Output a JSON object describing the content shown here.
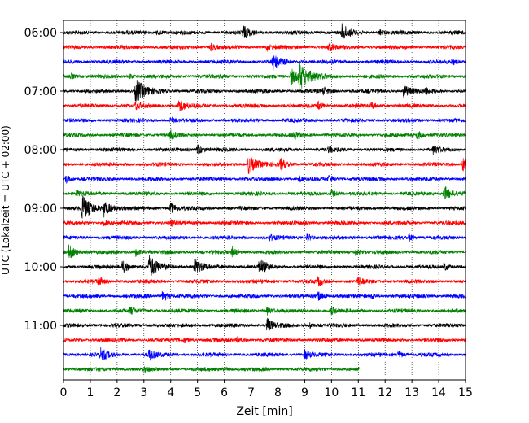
{
  "chart_data": {
    "type": "line",
    "title": "",
    "xlabel": "Zeit  [min]",
    "ylabel": "UTC (Lokalzeit = UTC + 02:00)",
    "xlim": [
      0,
      15
    ],
    "x_ticks": [
      "0",
      "1",
      "2",
      "3",
      "4",
      "5",
      "6",
      "7",
      "8",
      "9",
      "10",
      "11",
      "12",
      "13",
      "14",
      "15"
    ],
    "y_ticks": [
      {
        "time": "06:00",
        "row": 0
      },
      {
        "time": "07:00",
        "row": 4
      },
      {
        "time": "08:00",
        "row": 8
      },
      {
        "time": "09:00",
        "row": 12
      },
      {
        "time": "10:00",
        "row": 16
      },
      {
        "time": "11:00",
        "row": 20
      }
    ],
    "grid": "vertical dotted",
    "row_minutes": 15,
    "trace_colors": [
      "#000000",
      "#ff0000",
      "#0000ff",
      "#008000"
    ],
    "traces": [
      {
        "start": "06:00",
        "color": "#000000",
        "end_min": 15,
        "events": [
          [
            6.7,
            0.5
          ],
          [
            10.4,
            0.6
          ],
          [
            3.5,
            0.2
          ],
          [
            11.8,
            0.2
          ]
        ]
      },
      {
        "start": "06:15",
        "color": "#ff0000",
        "end_min": 15,
        "events": [
          [
            5.5,
            0.25
          ],
          [
            7.6,
            0.25
          ],
          [
            9.9,
            0.3
          ]
        ]
      },
      {
        "start": "06:30",
        "color": "#0000ff",
        "end_min": 15,
        "events": [
          [
            7.8,
            0.6
          ],
          [
            14.5,
            0.2
          ]
        ]
      },
      {
        "start": "06:45",
        "color": "#008000",
        "end_min": 15,
        "events": [
          [
            0.3,
            0.2
          ],
          [
            8.8,
            1.0
          ],
          [
            8.5,
            0.6
          ],
          [
            2.5,
            0.2
          ]
        ]
      },
      {
        "start": "07:00",
        "color": "#000000",
        "end_min": 15,
        "events": [
          [
            2.7,
            0.9
          ],
          [
            9.7,
            0.3
          ],
          [
            12.7,
            0.5
          ],
          [
            13.5,
            0.25
          ]
        ]
      },
      {
        "start": "07:15",
        "color": "#ff0000",
        "end_min": 15,
        "events": [
          [
            2.7,
            0.3
          ],
          [
            4.3,
            0.5
          ],
          [
            9.5,
            0.3
          ],
          [
            11.5,
            0.25
          ]
        ]
      },
      {
        "start": "07:30",
        "color": "#0000ff",
        "end_min": 15,
        "events": [
          [
            4.0,
            0.2
          ]
        ]
      },
      {
        "start": "07:45",
        "color": "#008000",
        "end_min": 15,
        "events": [
          [
            4.0,
            0.3
          ],
          [
            8.6,
            0.3
          ],
          [
            13.2,
            0.35
          ]
        ]
      },
      {
        "start": "08:00",
        "color": "#000000",
        "end_min": 15,
        "events": [
          [
            5.0,
            0.35
          ],
          [
            9.9,
            0.2
          ],
          [
            13.8,
            0.3
          ]
        ]
      },
      {
        "start": "08:15",
        "color": "#ff0000",
        "end_min": 15,
        "events": [
          [
            6.9,
            0.7
          ],
          [
            8.1,
            0.4
          ],
          [
            14.9,
            0.5
          ]
        ]
      },
      {
        "start": "08:30",
        "color": "#0000ff",
        "end_min": 15,
        "events": [
          [
            0.1,
            0.3
          ],
          [
            9.9,
            0.3
          ],
          [
            8.8,
            0.2
          ]
        ]
      },
      {
        "start": "08:45",
        "color": "#008000",
        "end_min": 15,
        "events": [
          [
            0.5,
            0.25
          ],
          [
            10.0,
            0.3
          ],
          [
            14.2,
            0.6
          ]
        ]
      },
      {
        "start": "09:00",
        "color": "#000000",
        "end_min": 15,
        "events": [
          [
            0.7,
            0.9
          ],
          [
            1.5,
            0.6
          ],
          [
            4.0,
            0.4
          ]
        ]
      },
      {
        "start": "09:15",
        "color": "#ff0000",
        "end_min": 15,
        "events": [
          [
            1.5,
            0.25
          ],
          [
            4.0,
            0.2
          ]
        ]
      },
      {
        "start": "09:30",
        "color": "#0000ff",
        "end_min": 15,
        "events": [
          [
            7.7,
            0.2
          ],
          [
            9.1,
            0.3
          ],
          [
            12.9,
            0.25
          ]
        ]
      },
      {
        "start": "09:45",
        "color": "#008000",
        "end_min": 15,
        "events": [
          [
            0.2,
            0.5
          ],
          [
            2.7,
            0.3
          ],
          [
            6.3,
            0.35
          ],
          [
            10.9,
            0.25
          ]
        ]
      },
      {
        "start": "10:00",
        "color": "#000000",
        "end_min": 15,
        "events": [
          [
            2.2,
            0.5
          ],
          [
            3.2,
            0.8
          ],
          [
            4.9,
            0.6
          ],
          [
            7.3,
            0.6
          ],
          [
            14.2,
            0.3
          ]
        ]
      },
      {
        "start": "10:15",
        "color": "#ff0000",
        "end_min": 15,
        "events": [
          [
            1.3,
            0.3
          ],
          [
            9.5,
            0.3
          ],
          [
            11.0,
            0.25
          ]
        ]
      },
      {
        "start": "10:30",
        "color": "#0000ff",
        "end_min": 15,
        "events": [
          [
            3.7,
            0.4
          ],
          [
            9.5,
            0.35
          ],
          [
            11.5,
            0.2
          ]
        ]
      },
      {
        "start": "10:45",
        "color": "#008000",
        "end_min": 15,
        "events": [
          [
            2.5,
            0.25
          ],
          [
            7.6,
            0.3
          ],
          [
            10.0,
            0.25
          ]
        ]
      },
      {
        "start": "11:00",
        "color": "#000000",
        "end_min": 15,
        "events": [
          [
            7.6,
            0.5
          ],
          [
            9.2,
            0.2
          ]
        ]
      },
      {
        "start": "11:15",
        "color": "#ff0000",
        "end_min": 15,
        "events": [
          [
            4.5,
            0.2
          ],
          [
            6.5,
            0.25
          ]
        ]
      },
      {
        "start": "11:30",
        "color": "#0000ff",
        "end_min": 15,
        "events": [
          [
            1.4,
            0.45
          ],
          [
            3.2,
            0.4
          ],
          [
            9.0,
            0.35
          ],
          [
            12.5,
            0.25
          ]
        ]
      },
      {
        "start": "11:45",
        "color": "#008000",
        "end_min": 11.05,
        "events": [
          [
            3.0,
            0.15
          ],
          [
            6.0,
            0.15
          ]
        ]
      }
    ]
  }
}
